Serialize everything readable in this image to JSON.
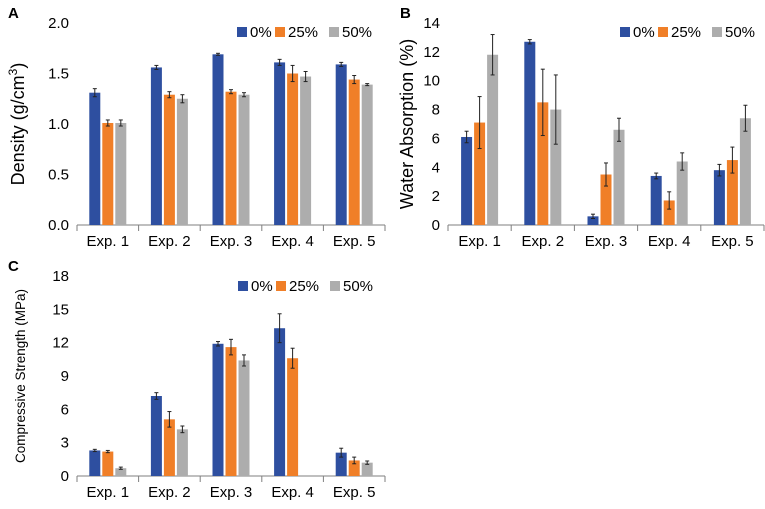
{
  "figure": {
    "colors": {
      "0%": "#2E4FA0",
      "25%": "#F07F28",
      "50%": "#ADADAD",
      "axis": "#7F7F7F",
      "errbar": "#222222"
    }
  },
  "chart_data": [
    {
      "id": "A",
      "type": "bar",
      "panel_label": "A",
      "title": "",
      "xlabel": "",
      "ylabel": "Density (g/cm",
      "ylabel_superscript": "3",
      "ylabel_close": ")",
      "ylim": [
        0,
        2.0
      ],
      "yticks": [
        "0.0",
        "0.5",
        "1.0",
        "1.5",
        "2.0"
      ],
      "ytick_values": [
        0,
        0.5,
        1.0,
        1.5,
        2.0
      ],
      "categories": [
        "Exp. 1",
        "Exp. 2",
        "Exp. 3",
        "Exp. 4",
        "Exp. 5"
      ],
      "legend": [
        "0%",
        "25%",
        "50%"
      ],
      "legend_position": "top-right",
      "series": [
        {
          "name": "0%",
          "values": [
            1.31,
            1.56,
            1.69,
            1.61,
            1.59
          ],
          "errors": [
            0.04,
            0.02,
            0.01,
            0.03,
            0.02
          ]
        },
        {
          "name": "25%",
          "values": [
            1.01,
            1.29,
            1.32,
            1.5,
            1.44
          ],
          "errors": [
            0.03,
            0.03,
            0.02,
            0.08,
            0.04
          ]
        },
        {
          "name": "50%",
          "values": [
            1.01,
            1.25,
            1.29,
            1.47,
            1.39
          ],
          "errors": [
            0.03,
            0.04,
            0.02,
            0.05,
            0.01
          ]
        }
      ]
    },
    {
      "id": "B",
      "type": "bar",
      "panel_label": "B",
      "title": "",
      "xlabel": "",
      "ylabel": "Water Absorption (%)",
      "ylim": [
        0,
        14
      ],
      "yticks": [
        "0",
        "2",
        "4",
        "6",
        "8",
        "10",
        "12",
        "14"
      ],
      "ytick_values": [
        0,
        2,
        4,
        6,
        8,
        10,
        12,
        14
      ],
      "categories": [
        "Exp. 1",
        "Exp. 2",
        "Exp. 3",
        "Exp. 4",
        "Exp. 5"
      ],
      "legend": [
        "0%",
        "25%",
        "50%"
      ],
      "legend_position": "top-right",
      "series": [
        {
          "name": "0%",
          "values": [
            6.1,
            12.7,
            0.6,
            3.4,
            3.8
          ],
          "errors": [
            0.4,
            0.15,
            0.15,
            0.2,
            0.4
          ]
        },
        {
          "name": "25%",
          "values": [
            7.1,
            8.5,
            3.5,
            1.7,
            4.5
          ],
          "errors": [
            1.8,
            2.3,
            0.8,
            0.6,
            0.9
          ]
        },
        {
          "name": "50%",
          "values": [
            11.8,
            8.0,
            6.6,
            4.4,
            7.4
          ],
          "errors": [
            1.4,
            2.4,
            0.8,
            0.6,
            0.9
          ]
        }
      ]
    },
    {
      "id": "C",
      "type": "bar",
      "panel_label": "C",
      "title": "",
      "xlabel": "",
      "ylabel": "Compressive Strength (MPa)",
      "ylim": [
        0,
        18
      ],
      "yticks": [
        "0",
        "3",
        "6",
        "9",
        "12",
        "15",
        "18"
      ],
      "ytick_values": [
        0,
        3,
        6,
        9,
        12,
        15,
        18
      ],
      "categories": [
        "Exp. 1",
        "Exp. 2",
        "Exp. 3",
        "Exp. 4",
        "Exp. 5"
      ],
      "legend": [
        "0%",
        "25%",
        "50%"
      ],
      "legend_position": "top-right",
      "series": [
        {
          "name": "0%",
          "values": [
            2.3,
            7.2,
            11.9,
            13.3,
            2.1
          ],
          "errors": [
            0.1,
            0.3,
            0.2,
            1.3,
            0.4
          ]
        },
        {
          "name": "25%",
          "values": [
            2.2,
            5.1,
            11.6,
            10.6,
            1.4
          ],
          "errors": [
            0.1,
            0.7,
            0.7,
            0.9,
            0.3
          ]
        },
        {
          "name": "50%",
          "values": [
            0.7,
            4.2,
            10.4,
            0,
            1.2
          ],
          "errors": [
            0.1,
            0.3,
            0.5,
            0,
            0.15
          ]
        }
      ]
    }
  ]
}
